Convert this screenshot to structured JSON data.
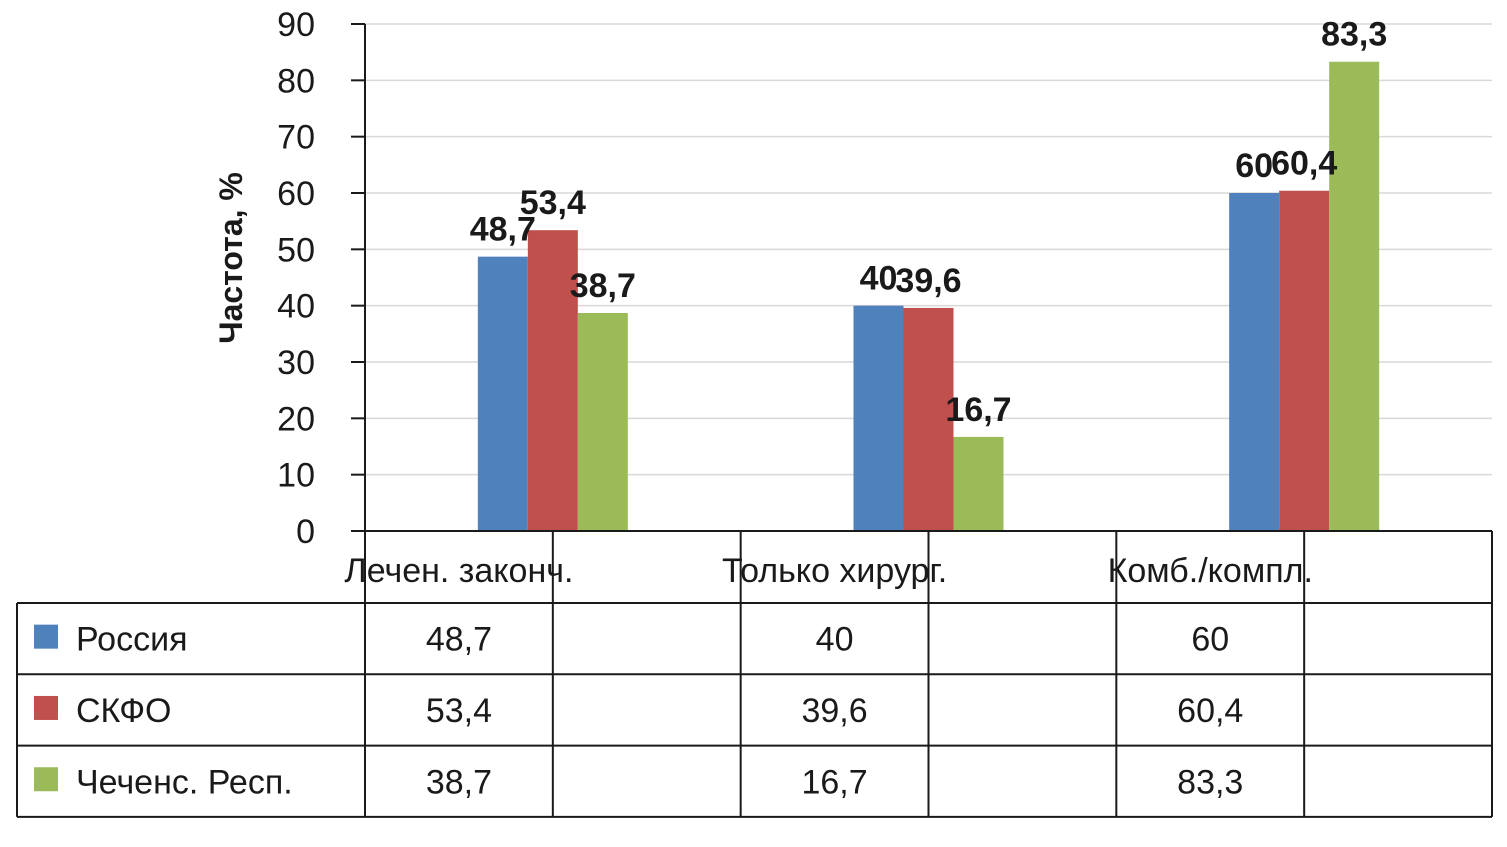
{
  "chart_data": {
    "type": "bar",
    "title": "",
    "ylabel": "Частота, %",
    "xlabel": "",
    "ylim": [
      0,
      90
    ],
    "yticks": [
      0,
      10,
      20,
      30,
      40,
      50,
      60,
      70,
      80,
      90
    ],
    "grid": true,
    "legend_placement": "data-table",
    "categories": [
      "Лечен. законч.",
      "Только хирург.",
      "Комб./компл."
    ],
    "series": [
      {
        "name": "Россия",
        "color": "#4f81bd",
        "values": [
          48.7,
          40,
          60
        ],
        "labels": [
          "48,7",
          "40",
          "60"
        ]
      },
      {
        "name": "СКФО",
        "color": "#c0504d",
        "values": [
          53.4,
          39.6,
          60.4
        ],
        "labels": [
          "53,4",
          "39,6",
          "60,4"
        ]
      },
      {
        "name": "Чеченс. Респ.",
        "color": "#9bbb59",
        "values": [
          38.7,
          16.7,
          83.3
        ],
        "labels": [
          "38,7",
          "16,7",
          "83,3"
        ]
      }
    ]
  }
}
